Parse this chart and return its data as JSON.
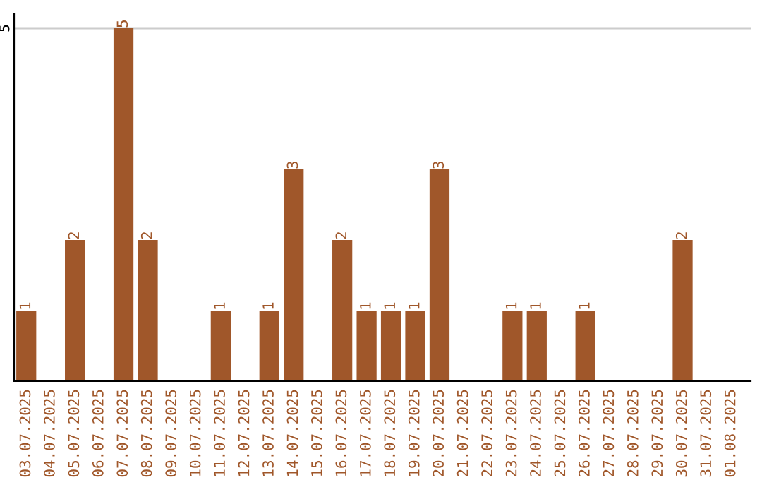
{
  "chart_data": {
    "type": "bar",
    "categories": [
      "03.07.2025",
      "04.07.2025",
      "05.07.2025",
      "06.07.2025",
      "07.07.2025",
      "08.07.2025",
      "09.07.2025",
      "10.07.2025",
      "11.07.2025",
      "12.07.2025",
      "13.07.2025",
      "14.07.2025",
      "15.07.2025",
      "16.07.2025",
      "17.07.2025",
      "18.07.2025",
      "19.07.2025",
      "20.07.2025",
      "21.07.2025",
      "22.07.2025",
      "23.07.2025",
      "24.07.2025",
      "25.07.2025",
      "26.07.2025",
      "27.07.2025",
      "28.07.2025",
      "29.07.2025",
      "30.07.2025",
      "31.07.2025",
      "01.08.2025"
    ],
    "values": [
      1,
      0,
      2,
      0,
      5,
      2,
      0,
      0,
      1,
      0,
      1,
      3,
      0,
      2,
      1,
      1,
      1,
      3,
      0,
      0,
      1,
      1,
      0,
      1,
      0,
      0,
      0,
      2,
      0,
      0
    ],
    "value_labels": [
      "1",
      null,
      "2",
      null,
      "5",
      "2",
      null,
      null,
      "1",
      null,
      "1",
      "3",
      null,
      "2",
      "1",
      "1",
      "1",
      "3",
      null,
      null,
      "1",
      "1",
      null,
      "1",
      null,
      null,
      null,
      "2",
      null,
      null
    ],
    "color": "#a0572a",
    "ylim": [
      0,
      5.2
    ],
    "yticks": [
      5
    ],
    "grid": "y"
  }
}
